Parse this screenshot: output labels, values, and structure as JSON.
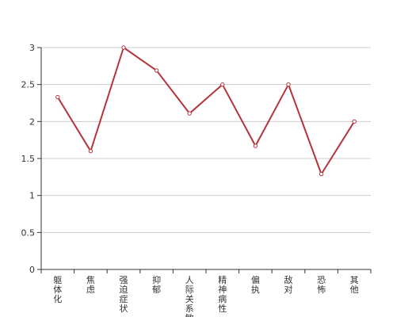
{
  "chart_data": {
    "type": "line",
    "categories": [
      "躯体化",
      "焦虑",
      "强迫症状",
      "抑郁",
      "人际关系敏感",
      "精神病性",
      "偏执",
      "敌对",
      "恐怖",
      "其他"
    ],
    "series": [
      {
        "values": [
          2.33,
          1.6,
          3.0,
          2.69,
          2.11,
          2.5,
          1.67,
          2.5,
          1.29,
          2.0
        ]
      }
    ],
    "yticks": [
      "0",
      "0.5",
      "1",
      "1.5",
      "2",
      "2.5",
      "3"
    ],
    "ylim": [
      0,
      3
    ],
    "grid": true,
    "colors": {
      "line": "#b5343a",
      "grid": "#cccccc",
      "axis": "#333333"
    }
  }
}
